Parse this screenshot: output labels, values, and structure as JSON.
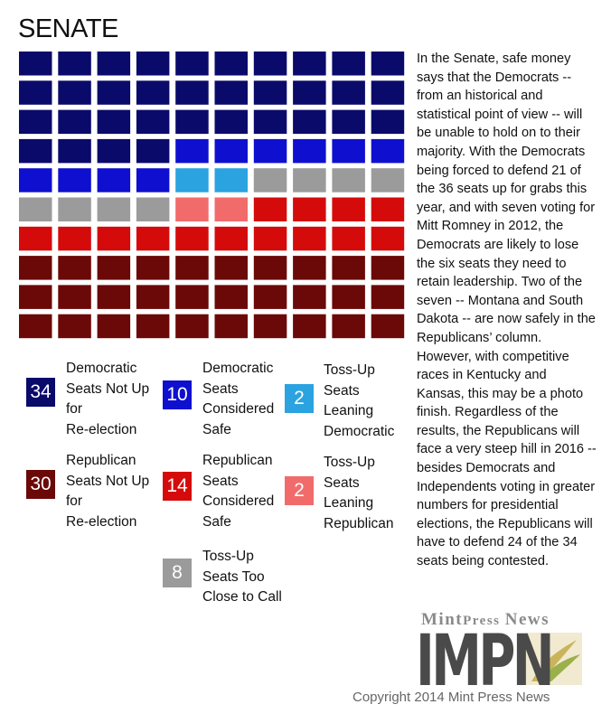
{
  "chart_data": {
    "type": "waffle",
    "title": "SENATE",
    "units": 100,
    "order": [
      "dem_not_up",
      "dem_safe",
      "tossup_lean_dem",
      "tossup_close",
      "tossup_lean_rep",
      "rep_safe",
      "rep_not_up"
    ],
    "categories": [
      {
        "key": "dem_not_up",
        "value": 34,
        "label_lines": [
          "Democratic",
          "Seats Not Up",
          "for",
          "Re-election"
        ],
        "color": "#0a0a6b"
      },
      {
        "key": "dem_safe",
        "value": 10,
        "label_lines": [
          "Democratic",
          "Seats",
          "Considered",
          "Safe"
        ],
        "color": "#0f0fd0"
      },
      {
        "key": "tossup_lean_dem",
        "value": 2,
        "label_lines": [
          "Toss-Up",
          "Seats",
          "Leaning",
          "Democratic"
        ],
        "color": "#2aa3e0"
      },
      {
        "key": "tossup_close",
        "value": 8,
        "label_lines": [
          "Toss-Up",
          "Seats Too",
          "Close to Call"
        ],
        "color": "#9b9b9b"
      },
      {
        "key": "tossup_lean_rep",
        "value": 2,
        "label_lines": [
          "Toss-Up",
          "Seats",
          "Leaning",
          "Republican"
        ],
        "color": "#f26b6b"
      },
      {
        "key": "rep_safe",
        "value": 14,
        "label_lines": [
          "Republican",
          "Seats",
          "Considered",
          "Safe"
        ],
        "color": "#d50b0b"
      },
      {
        "key": "rep_not_up",
        "value": 30,
        "label_lines": [
          "Republican",
          "Seats Not Up",
          "for",
          "Re-election"
        ],
        "color": "#6b0808"
      }
    ]
  },
  "paragraph": "In the Senate, safe money says that the Democrats -- from an historical and statistical point of view -- will be unable to hold on to their majority. With the Democrats being forced to defend 21 of the 36 seats up for grabs this year, and with seven voting for Mitt Romney in 2012, the Democrats are likely to lose the six seats they need to retain leadership. Two of the seven -- Montana and South Dakota -- are now safely in the Republicans’ column. However, with competitive races in Kentucky and Kansas, this may be a photo finish. Regardless of the results, the Republicans will face a very steep hill in 2016 -- besides Democrats and Independents voting in greater numbers for presidential elections, the Republicans will have to defend 24 of the 34 seats being contested.",
  "branding": {
    "name_word1": "Mint",
    "name_word2": "Press",
    "name_word3": "News",
    "logo_text": "IMPN"
  },
  "copyright": "Copyright 2014 Mint Press News"
}
